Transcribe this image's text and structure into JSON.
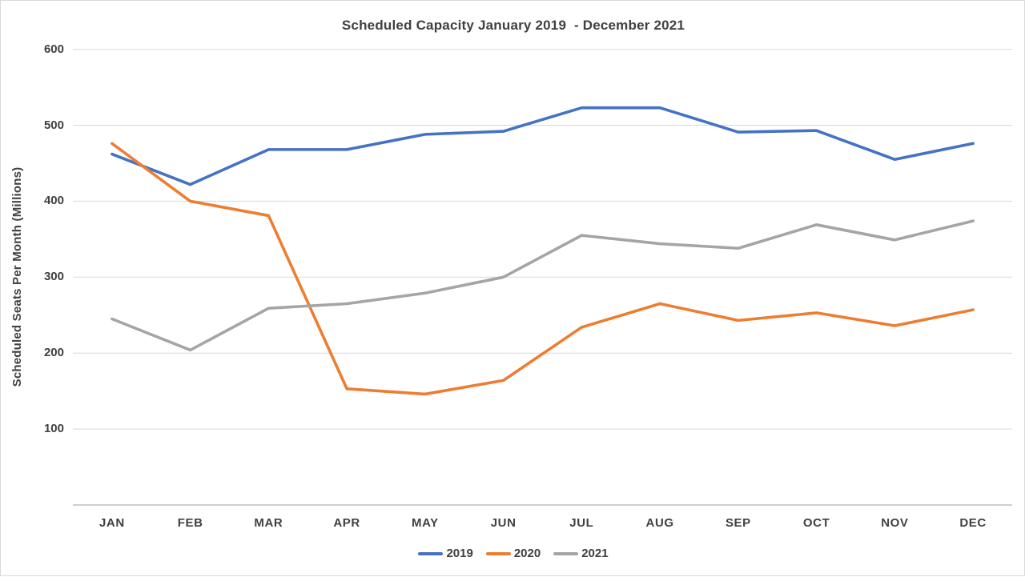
{
  "chart_data": {
    "type": "line",
    "title": "Scheduled Capacity January 2019  - December 2021",
    "ylabel": "Scheduled Seats Per Month (Millions)",
    "categories": [
      "JAN",
      "FEB",
      "MAR",
      "APR",
      "MAY",
      "JUN",
      "JUL",
      "AUG",
      "SEP",
      "OCT",
      "NOV",
      "DEC"
    ],
    "series": [
      {
        "name": "2019",
        "color": "#4472C4",
        "values": [
          462,
          422,
          468,
          468,
          488,
          492,
          523,
          523,
          491,
          493,
          455,
          476
        ]
      },
      {
        "name": "2020",
        "color": "#ED7D31",
        "values": [
          476,
          400,
          381,
          153,
          146,
          164,
          234,
          265,
          243,
          253,
          236,
          257
        ]
      },
      {
        "name": "2021",
        "color": "#A5A5A5",
        "values": [
          245,
          204,
          259,
          265,
          279,
          300,
          355,
          344,
          338,
          369,
          349,
          374
        ]
      }
    ],
    "ylim": [
      0,
      600
    ],
    "yticks": [
      100,
      200,
      300,
      400,
      500,
      600
    ],
    "grid": "horizontal",
    "legend_position": "bottom",
    "colors": {
      "text": "#404040",
      "gridline": "#D9D9D9",
      "axis": "#BFBFBF",
      "background": "#FFFFFF"
    }
  }
}
